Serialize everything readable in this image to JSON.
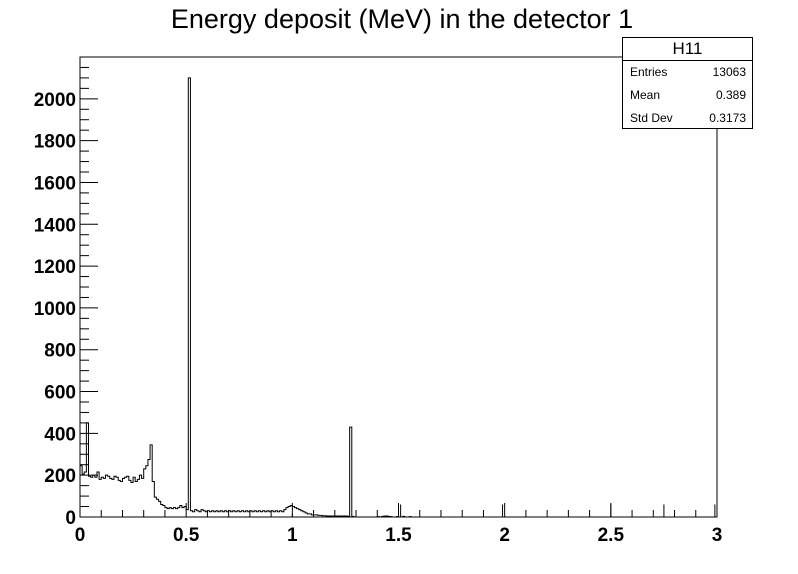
{
  "chart_data": {
    "type": "histogram",
    "title": "Energy deposit (MeV) in the detector 1",
    "xlabel": "",
    "ylabel": "",
    "xlim": [
      0,
      3
    ],
    "ylim": [
      0,
      2200
    ],
    "bin_width": 0.01,
    "x_ticks": [
      "0",
      "0.5",
      "1",
      "1.5",
      "2",
      "2.5",
      "3"
    ],
    "y_ticks": [
      "0",
      "200",
      "400",
      "600",
      "800",
      "1000",
      "1200",
      "1400",
      "1600",
      "1800",
      "2000"
    ],
    "values": [
      245,
      205,
      215,
      450,
      195,
      190,
      200,
      190,
      215,
      180,
      190,
      185,
      200,
      195,
      185,
      180,
      195,
      190,
      175,
      170,
      185,
      190,
      195,
      175,
      165,
      190,
      170,
      180,
      200,
      185,
      230,
      245,
      275,
      345,
      170,
      95,
      85,
      75,
      60,
      55,
      45,
      40,
      45,
      40,
      45,
      40,
      45,
      55,
      45,
      50,
      35,
      2100,
      30,
      25,
      35,
      30,
      25,
      35,
      30,
      25,
      30,
      25,
      30,
      25,
      30,
      25,
      30,
      25,
      30,
      25,
      30,
      25,
      30,
      25,
      30,
      25,
      30,
      25,
      30,
      25,
      30,
      25,
      30,
      25,
      30,
      25,
      30,
      25,
      30,
      25,
      30,
      25,
      30,
      25,
      30,
      25,
      35,
      45,
      50,
      55,
      50,
      45,
      40,
      35,
      30,
      25,
      20,
      15,
      15,
      10,
      10,
      10,
      8,
      8,
      6,
      6,
      5,
      5,
      5,
      5,
      5,
      5,
      5,
      5,
      5,
      5,
      3,
      430,
      3,
      0,
      0,
      0,
      0,
      0,
      0,
      0,
      0,
      0,
      0,
      0,
      2,
      0,
      3,
      4,
      5,
      3,
      2,
      0,
      0,
      2,
      0,
      0,
      3,
      0,
      0,
      2,
      0,
      0,
      0,
      0
    ],
    "spikes": [
      {
        "x": 1.0,
        "y": 15
      },
      {
        "x": 1.51,
        "y": 60
      },
      {
        "x": 1.99,
        "y": 60
      },
      {
        "x": 2.5,
        "y": 60
      },
      {
        "x": 2.75,
        "y": 60
      },
      {
        "x": 2.99,
        "y": 60
      }
    ]
  },
  "stats": {
    "title": "H11",
    "rows": [
      {
        "label": "Entries",
        "value": "13063"
      },
      {
        "label": "Mean",
        "value": "0.389"
      },
      {
        "label": "Std Dev",
        "value": "0.3173"
      }
    ]
  }
}
